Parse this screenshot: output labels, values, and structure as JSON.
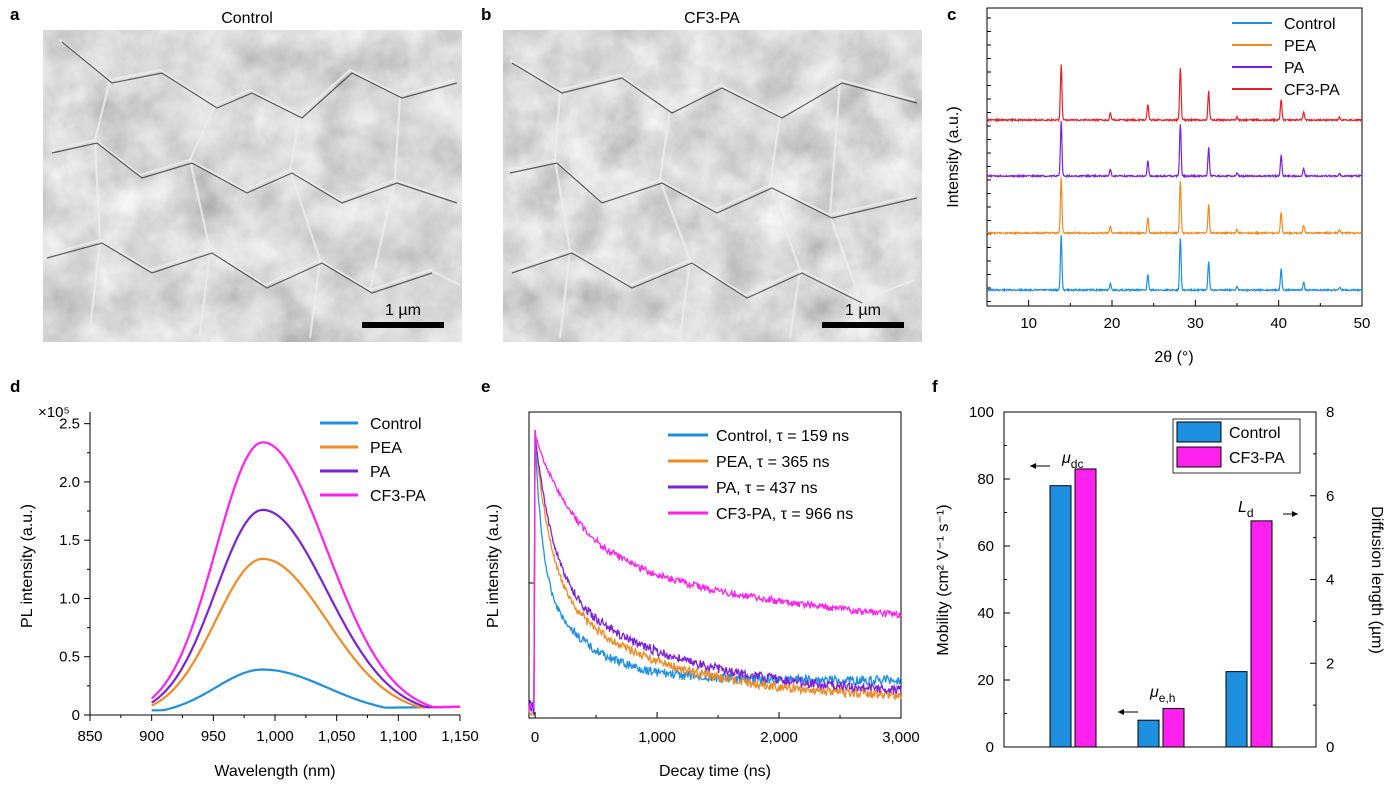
{
  "panels": [
    {
      "id": "a",
      "letter": "a",
      "title": "Control",
      "scalebar": "1 µm"
    },
    {
      "id": "b",
      "letter": "b",
      "title": "CF3-PA",
      "scalebar": "1 µm"
    }
  ],
  "colors": {
    "Control": "#1f8fe0",
    "PEA": "#f08a24",
    "PA": "#7a22d8",
    "CF3-PA": "#ff22ee",
    "XRD_Control": "#1f8fe0",
    "XRD_CF3": "#e8202a"
  },
  "chart_data": [
    {
      "id": "c",
      "letter": "c",
      "type": "line",
      "title": "",
      "xlabel": "2θ (°)",
      "ylabel": "Intensity (a.u.)",
      "xlim": [
        5,
        50
      ],
      "xticks": [
        10,
        20,
        30,
        40,
        50
      ],
      "peaks_2theta": [
        13.9,
        19.8,
        24.3,
        28.2,
        31.6,
        35.0,
        40.3,
        43.0,
        47.3
      ],
      "peak_rel_intensity": [
        1.0,
        0.12,
        0.28,
        0.95,
        0.52,
        0.06,
        0.38,
        0.14,
        0.05
      ],
      "series": [
        {
          "name": "Control"
        },
        {
          "name": "PEA"
        },
        {
          "name": "PA"
        },
        {
          "name": "CF3-PA"
        }
      ]
    },
    {
      "id": "d",
      "letter": "d",
      "type": "line",
      "xlabel": "Wavelength (nm)",
      "ylabel": "PL intensity (a.u.)",
      "multiplier": "×10⁵",
      "xlim": [
        850,
        1150
      ],
      "ylim": [
        0,
        2.6
      ],
      "xticks": [
        "850",
        "900",
        "950",
        "1,000",
        "1,050",
        "1,100",
        "1,150"
      ],
      "yticks": [
        "0",
        "0.5",
        "1.0",
        "1.5",
        "2.0",
        "2.5"
      ],
      "peak_nm": 990,
      "series": [
        {
          "name": "Control",
          "peak": 0.39
        },
        {
          "name": "PEA",
          "peak": 1.34
        },
        {
          "name": "PA",
          "peak": 1.76
        },
        {
          "name": "CF3-PA",
          "peak": 2.34
        }
      ]
    },
    {
      "id": "e",
      "letter": "e",
      "type": "line",
      "xlabel": "Decay time (ns)",
      "ylabel": "PL intensity (a.u.)",
      "xlim": [
        -50,
        3000
      ],
      "xticks": [
        "0",
        "1,000",
        "2,000",
        "3,000"
      ],
      "series": [
        {
          "name": "Control",
          "label": "Control, τ = 159 ns",
          "tau": 159
        },
        {
          "name": "PEA",
          "label": "PEA, τ = 365 ns",
          "tau": 365
        },
        {
          "name": "PA",
          "label": "PA, τ = 437 ns",
          "tau": 437
        },
        {
          "name": "CF3-PA",
          "label": "CF3-PA, τ = 966 ns",
          "tau": 966
        }
      ]
    },
    {
      "id": "f",
      "letter": "f",
      "type": "bar",
      "ylabel": "Mobility (cm² V⁻¹ s⁻¹)",
      "y2label": "Diffusion length (µm)",
      "ylim": [
        0,
        100
      ],
      "y2lim": [
        0,
        8
      ],
      "yticks": [
        "0",
        "20",
        "40",
        "60",
        "80",
        "100"
      ],
      "y2ticks": [
        "0",
        "2",
        "4",
        "6",
        "8"
      ],
      "groups": [
        {
          "label": "μdc",
          "axis": "left",
          "Control": 78,
          "CF3-PA": 83
        },
        {
          "label": "μe,h",
          "axis": "left",
          "Control": 8,
          "CF3-PA": 11.5
        },
        {
          "label": "Ld",
          "axis": "right",
          "Control": 1.8,
          "CF3-PA": 5.4
        }
      ],
      "series": [
        {
          "name": "Control"
        },
        {
          "name": "CF3-PA"
        }
      ]
    }
  ]
}
